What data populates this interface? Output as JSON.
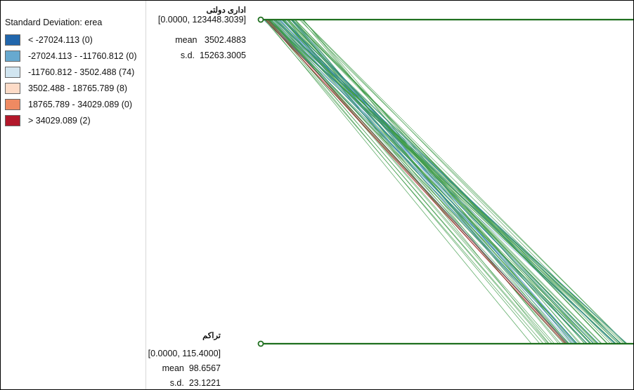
{
  "chart_data": {
    "type": "parallel-coordinates",
    "legend": {
      "title": "Standard Deviation: erea",
      "classes": [
        {
          "label": "< -27024.113 (0)",
          "color": "#2166ac"
        },
        {
          "label": "-27024.113 - -11760.812 (0)",
          "color": "#67a9cf"
        },
        {
          "label": "-11760.812 - 3502.488 (74)",
          "color": "#d1e5f0"
        },
        {
          "label": "3502.488 - 18765.789 (8)",
          "color": "#fddbc7"
        },
        {
          "label": "18765.789 - 34029.089 (0)",
          "color": "#ef8a62"
        },
        {
          "label": "> 34029.089 (2)",
          "color": "#b2182b"
        }
      ]
    },
    "axes": [
      {
        "name": "اداری دولتی",
        "range_label": "[0.0000, 123448.3039]",
        "mean_label": "mean",
        "mean": "3502.4883",
        "sd_label": "s.d.",
        "sd": "15263.3005",
        "range": [
          0,
          123448.3039
        ]
      },
      {
        "name": "تراکم",
        "range_label": "[0.0000, 115.4000]",
        "mean_label": "mean",
        "mean": "98.6567",
        "sd_label": "s.d.",
        "sd": "23.1221",
        "range": [
          0,
          115.4
        ]
      }
    ],
    "axis_color": "#1f6f1f",
    "line_colors": {
      "main": "#3d9a48",
      "blue": "#2c7fb8",
      "red": "#b2182b"
    }
  }
}
